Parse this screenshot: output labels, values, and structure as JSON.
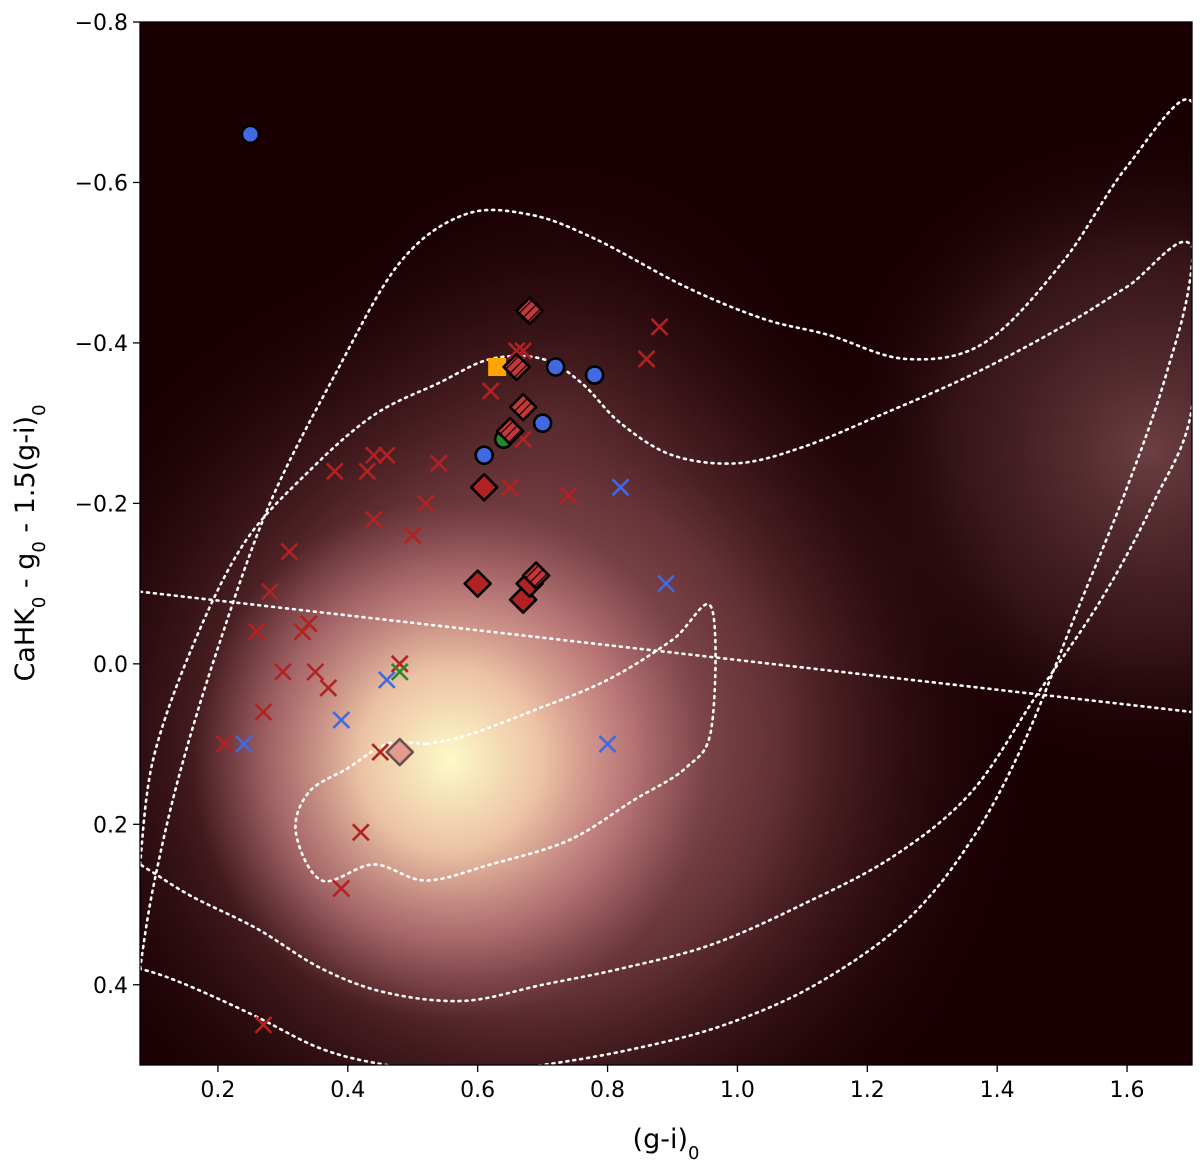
{
  "chart_data": {
    "type": "scatter",
    "title": "",
    "xlabel": "(g-i)",
    "xlabel_sub": "0",
    "ylabel_parts": [
      "CaHK",
      "0",
      " - g",
      "0",
      " - 1.5(g-i)",
      "0"
    ],
    "xlim": [
      0.08,
      1.7
    ],
    "ylim": [
      0.5,
      -0.8
    ],
    "y_inverted": true,
    "xticks": [
      0.2,
      0.4,
      0.6,
      0.8,
      1.0,
      1.2,
      1.4,
      1.6
    ],
    "xtick_labels": [
      "0.2",
      "0.4",
      "0.6",
      "0.8",
      "1.0",
      "1.2",
      "1.4",
      "1.6"
    ],
    "yticks": [
      -0.8,
      -0.6,
      -0.4,
      -0.2,
      0.0,
      0.2,
      0.4
    ],
    "ytick_labels": [
      "−0.8",
      "−0.6",
      "−0.4",
      "−0.2",
      "0.0",
      "0.2",
      "0.4"
    ],
    "grid": false,
    "legend": "none",
    "background": {
      "type": "density",
      "colormap": [
        "#1a0003",
        "#6b3a3e",
        "#d88a8a",
        "#fdfcc8"
      ],
      "peak": [
        0.55,
        0.13
      ]
    },
    "contours": [
      [
        [
          0.52,
          0.1
        ],
        [
          0.46,
          0.1
        ],
        [
          0.4,
          0.13
        ],
        [
          0.34,
          0.16
        ],
        [
          0.32,
          0.21
        ],
        [
          0.36,
          0.27
        ],
        [
          0.44,
          0.25
        ],
        [
          0.52,
          0.27
        ],
        [
          0.62,
          0.25
        ],
        [
          0.74,
          0.22
        ],
        [
          0.84,
          0.17
        ],
        [
          0.92,
          0.13
        ],
        [
          0.96,
          0.08
        ],
        [
          0.96,
          -0.07
        ],
        [
          0.9,
          -0.03
        ],
        [
          0.8,
          0.02
        ],
        [
          0.68,
          0.06
        ],
        [
          0.58,
          0.09
        ],
        [
          0.52,
          0.1
        ]
      ],
      [
        [
          0.08,
          0.25
        ],
        [
          0.1,
          0.12
        ],
        [
          0.16,
          -0.02
        ],
        [
          0.24,
          -0.15
        ],
        [
          0.34,
          -0.24
        ],
        [
          0.44,
          -0.31
        ],
        [
          0.54,
          -0.35
        ],
        [
          0.62,
          -0.38
        ],
        [
          0.7,
          -0.38
        ],
        [
          0.76,
          -0.35
        ],
        [
          0.82,
          -0.3
        ],
        [
          0.9,
          -0.26
        ],
        [
          1.0,
          -0.25
        ],
        [
          1.1,
          -0.27
        ],
        [
          1.22,
          -0.31
        ],
        [
          1.36,
          -0.36
        ],
        [
          1.5,
          -0.42
        ],
        [
          1.6,
          -0.47
        ],
        [
          1.7,
          -0.52
        ],
        [
          1.7,
          -0.32
        ],
        [
          1.64,
          -0.2
        ],
        [
          1.56,
          -0.08
        ],
        [
          1.46,
          0.04
        ],
        [
          1.36,
          0.16
        ],
        [
          1.24,
          0.24
        ],
        [
          1.1,
          0.3
        ],
        [
          0.96,
          0.35
        ],
        [
          0.82,
          0.38
        ],
        [
          0.7,
          0.4
        ],
        [
          0.58,
          0.42
        ],
        [
          0.46,
          0.41
        ],
        [
          0.36,
          0.38
        ],
        [
          0.26,
          0.33
        ],
        [
          0.16,
          0.29
        ],
        [
          0.1,
          0.26
        ],
        [
          0.08,
          0.25
        ]
      ],
      [
        [
          0.08,
          0.38
        ],
        [
          0.1,
          0.28
        ],
        [
          0.14,
          0.14
        ],
        [
          0.2,
          -0.02
        ],
        [
          0.28,
          -0.2
        ],
        [
          0.38,
          -0.36
        ],
        [
          0.48,
          -0.5
        ],
        [
          0.58,
          -0.56
        ],
        [
          0.68,
          -0.56
        ],
        [
          0.78,
          -0.53
        ],
        [
          0.92,
          -0.47
        ],
        [
          1.04,
          -0.43
        ],
        [
          1.14,
          -0.41
        ],
        [
          1.26,
          -0.38
        ],
        [
          1.38,
          -0.4
        ],
        [
          1.5,
          -0.5
        ],
        [
          1.6,
          -0.62
        ],
        [
          1.7,
          -0.7
        ],
        [
          1.7,
          -0.5
        ],
        [
          1.66,
          -0.36
        ],
        [
          1.6,
          -0.22
        ],
        [
          1.52,
          -0.06
        ],
        [
          1.44,
          0.1
        ],
        [
          1.36,
          0.22
        ],
        [
          1.26,
          0.32
        ],
        [
          1.12,
          0.4
        ],
        [
          0.98,
          0.45
        ],
        [
          0.84,
          0.48
        ],
        [
          0.7,
          0.5
        ],
        [
          0.58,
          0.51
        ],
        [
          0.46,
          0.5
        ],
        [
          0.36,
          0.48
        ],
        [
          0.26,
          0.44
        ],
        [
          0.18,
          0.41
        ],
        [
          0.12,
          0.39
        ],
        [
          0.08,
          0.38
        ]
      ]
    ],
    "dividing_line": {
      "x": [
        0.08,
        1.7
      ],
      "y": [
        -0.09,
        0.06
      ]
    },
    "series": [
      {
        "name": "red-crosses",
        "marker": "x",
        "color": "#b22222",
        "x": [
          0.26,
          0.27,
          0.28,
          0.3,
          0.31,
          0.33,
          0.34,
          0.35,
          0.37,
          0.38,
          0.42,
          0.43,
          0.44,
          0.45,
          0.44,
          0.46,
          0.5,
          0.52,
          0.54,
          0.48,
          0.62,
          0.65,
          0.66,
          0.67,
          0.67,
          0.74,
          0.86,
          0.88,
          0.27,
          0.21,
          0.39
        ],
        "y": [
          -0.04,
          0.06,
          -0.09,
          0.01,
          -0.14,
          -0.04,
          -0.05,
          0.01,
          0.03,
          -0.24,
          0.21,
          -0.24,
          -0.18,
          0.11,
          -0.26,
          -0.26,
          -0.16,
          -0.2,
          -0.25,
          0.0,
          -0.34,
          -0.22,
          -0.39,
          -0.28,
          -0.39,
          -0.21,
          -0.38,
          -0.42,
          0.45,
          0.1,
          0.28
        ]
      },
      {
        "name": "blue-crosses",
        "marker": "x",
        "color": "#4169e1",
        "x": [
          0.24,
          0.39,
          0.46,
          0.8,
          0.82,
          0.89
        ],
        "y": [
          0.1,
          0.07,
          0.02,
          0.1,
          -0.22,
          -0.1
        ]
      },
      {
        "name": "green-cross",
        "marker": "x",
        "color": "#228b22",
        "x": [
          0.48
        ],
        "y": [
          0.01
        ]
      },
      {
        "name": "blue-circles",
        "marker": "circle",
        "color": "#4169e1",
        "x": [
          0.25,
          0.61,
          0.7,
          0.72,
          0.78
        ],
        "y": [
          -0.66,
          -0.26,
          -0.3,
          -0.37,
          -0.36
        ]
      },
      {
        "name": "green-circle",
        "marker": "circle",
        "color": "#228b22",
        "x": [
          0.64
        ],
        "y": [
          -0.28
        ]
      },
      {
        "name": "orange-square",
        "marker": "square",
        "color": "#ffa500",
        "x": [
          0.63
        ],
        "y": [
          -0.37
        ]
      },
      {
        "name": "red-diamonds",
        "marker": "diamond",
        "color": "#b22222",
        "x": [
          0.61,
          0.6,
          0.67,
          0.68
        ],
        "y": [
          -0.22,
          -0.1,
          -0.08,
          -0.1
        ]
      },
      {
        "name": "hatched-diamonds",
        "marker": "diamond-hatched",
        "color": "#b22222",
        "x": [
          0.68,
          0.66,
          0.67,
          0.65,
          0.69
        ],
        "y": [
          -0.44,
          -0.37,
          -0.32,
          -0.29,
          -0.11
        ]
      },
      {
        "name": "pink-diamond",
        "marker": "diamond",
        "color": "#e59a90",
        "x": [
          0.48
        ],
        "y": [
          0.11
        ]
      }
    ]
  }
}
